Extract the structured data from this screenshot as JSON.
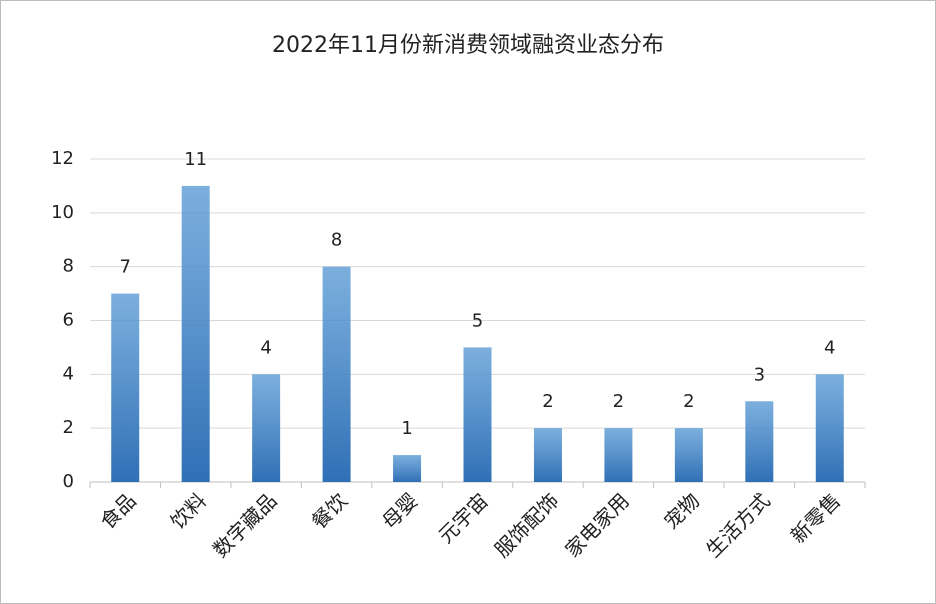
{
  "chart_data": {
    "type": "bar",
    "title": "2022年11月份新消费领域融资业态分布",
    "categories": [
      "食品",
      "饮料",
      "数字藏品",
      "餐饮",
      "母婴",
      "元宇宙",
      "服饰配饰",
      "家电家用",
      "宠物",
      "生活方式",
      "新零售"
    ],
    "values": [
      7,
      11,
      4,
      8,
      1,
      5,
      2,
      2,
      2,
      3,
      4
    ],
    "color": "#5b9bd5",
    "ylim": [
      0,
      12
    ],
    "yticks": [
      0,
      2,
      4,
      6,
      8,
      10,
      12
    ],
    "grid": true
  }
}
